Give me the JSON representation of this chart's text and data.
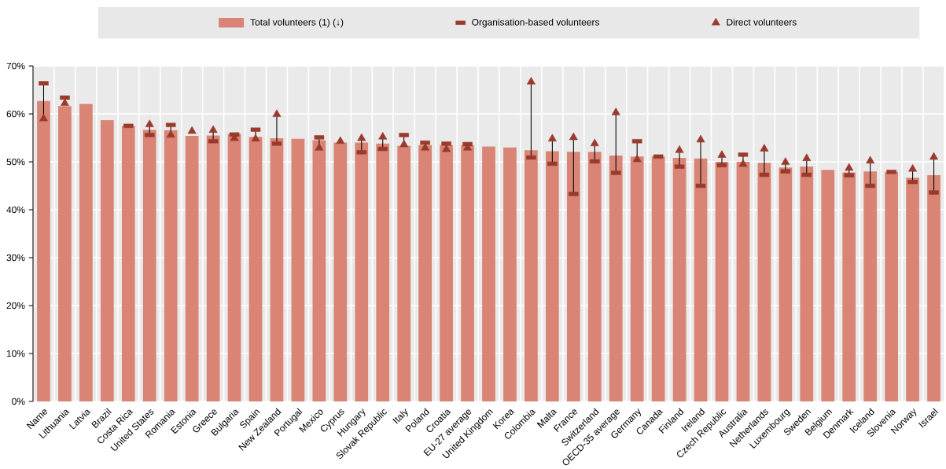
{
  "chart_data": {
    "type": "bar",
    "categories": [
      "Name",
      "Lithuania",
      "Latvia",
      "Brazil",
      "Costa Rica",
      "United States",
      "Romania",
      "Estonia",
      "Greece",
      "Bulgaria",
      "Spain",
      "New Zealand",
      "Portugal",
      "Mexico",
      "Cyprus",
      "Hungary",
      "Slovak Republic",
      "Italy",
      "Poland",
      "Croatia",
      "EU-27 average",
      "United Kingdom",
      "Korea",
      "Colombia",
      "Malta",
      "France",
      "Switzerland",
      "OECD-35 average",
      "Germany",
      "Canada",
      "Finland",
      "Ireland",
      "Czech Republic",
      "Australia",
      "Netherlands",
      "Luxembourg",
      "Sweden",
      "Belgium",
      "Denmark",
      "Iceland",
      "Slovenia",
      "Norway",
      "Israel"
    ],
    "series": [
      {
        "name": "Total volunteers (1) (↓)",
        "type": "bar",
        "color": "#d98474",
        "values": [
          62.7,
          61.6,
          62.1,
          58.7,
          57.5,
          56.7,
          56.6,
          55.4,
          55.5,
          55.8,
          55.2,
          54.9,
          54.8,
          54.5,
          54.0,
          54.0,
          53.8,
          53.3,
          53.5,
          53.5,
          53.5,
          53.2,
          53.0,
          52.4,
          52.2,
          52.1,
          52.1,
          51.3,
          51.1,
          51.1,
          50.8,
          50.7,
          50.0,
          50.0,
          49.8,
          48.8,
          49.0,
          48.3,
          47.8,
          48.0,
          47.9,
          46.7,
          47.2
        ]
      },
      {
        "name": "Organisation-based volunteers",
        "type": "scatter",
        "color": "#9a3a2c",
        "values": [
          66.4,
          63.4,
          null,
          null,
          57.5,
          55.6,
          57.7,
          null,
          54.3,
          55.7,
          56.7,
          53.8,
          null,
          55.1,
          null,
          52.0,
          52.7,
          55.6,
          54.0,
          53.8,
          53.7,
          null,
          null,
          50.9,
          49.6,
          43.3,
          50.1,
          47.7,
          54.3,
          51.1,
          49.0,
          45.0,
          49.3,
          51.5,
          47.3,
          48.0,
          47.3,
          null,
          47.2,
          45.0,
          47.9,
          45.8,
          43.6
        ]
      },
      {
        "name": "Direct volunteers",
        "type": "scatter",
        "marker": "triangle",
        "color": "#9a3a2c",
        "values": [
          59.0,
          62.2,
          null,
          null,
          null,
          57.8,
          55.6,
          56.4,
          56.6,
          54.9,
          54.8,
          59.9,
          null,
          52.9,
          54.3,
          54.9,
          55.2,
          53.6,
          52.9,
          52.6,
          52.9,
          null,
          null,
          66.7,
          54.8,
          55.1,
          53.8,
          60.3,
          50.5,
          null,
          52.4,
          54.6,
          51.4,
          49.5,
          52.7,
          49.9,
          50.7,
          null,
          48.7,
          50.2,
          null,
          48.5,
          51.0
        ]
      }
    ],
    "ylim": [
      0,
      70
    ],
    "yticks": [
      {
        "value": 0,
        "label": "0%"
      },
      {
        "value": 10,
        "label": "10%"
      },
      {
        "value": 20,
        "label": "20%"
      },
      {
        "value": 30,
        "label": "30%"
      },
      {
        "value": 40,
        "label": "40%"
      },
      {
        "value": 50,
        "label": "50%"
      },
      {
        "value": 60,
        "label": "60%"
      },
      {
        "value": 70,
        "label": "70%"
      }
    ],
    "grid": true,
    "legend": "top"
  }
}
